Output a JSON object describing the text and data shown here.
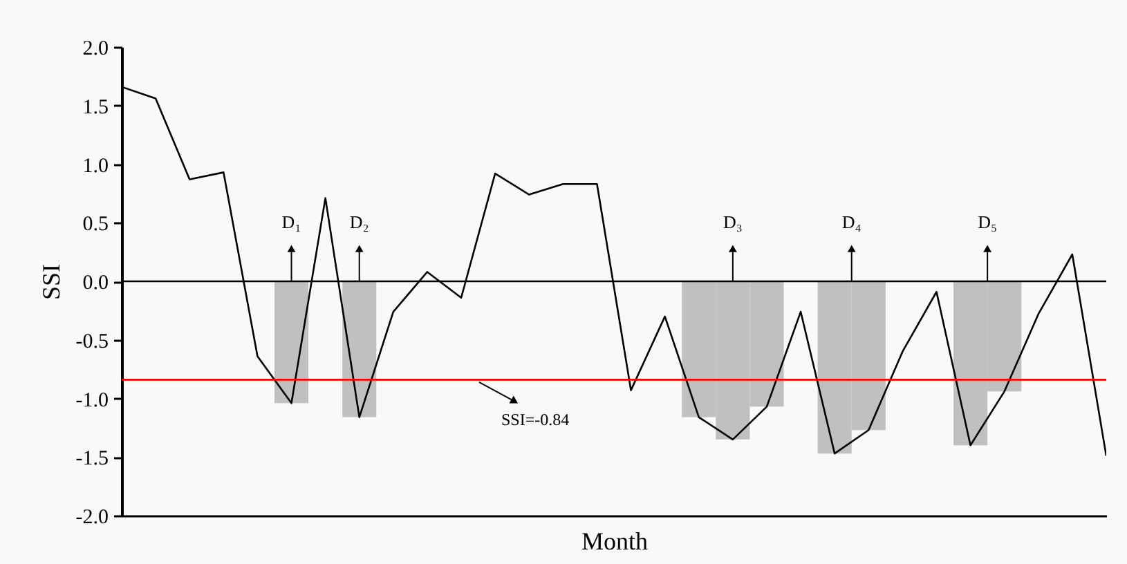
{
  "chart_data": {
    "type": "line",
    "xlabel": "Month",
    "ylabel": "SSI",
    "categories": [
      null,
      null,
      null,
      null,
      null,
      null,
      null,
      null,
      null,
      null,
      null,
      null,
      null,
      null,
      null,
      null,
      null,
      null,
      null,
      null,
      null,
      null,
      null,
      null,
      null,
      null,
      null,
      null,
      null,
      null
    ],
    "series": [
      {
        "color": "#000000",
        "values": [
          1.66,
          1.56,
          0.87,
          0.93,
          -0.64,
          -1.04,
          0.71,
          -1.16,
          -0.26,
          0.08,
          -0.14,
          0.92,
          0.74,
          0.83,
          0.83,
          -0.93,
          -0.3,
          -1.16,
          -1.35,
          -1.07,
          -0.26,
          -1.47,
          -1.27,
          -0.6,
          -0.09,
          -1.4,
          -0.94,
          -0.28,
          0.23,
          -1.49
        ]
      },
      {
        "type": "bar",
        "color": "#c0c0c0",
        "values": [
          null,
          null,
          null,
          null,
          null,
          -1.04,
          null,
          -1.16,
          null,
          null,
          null,
          null,
          null,
          null,
          null,
          null,
          null,
          -1.16,
          -1.35,
          -1.07,
          null,
          -1.47,
          -1.27,
          null,
          null,
          -1.4,
          -0.94,
          null,
          null,
          null
        ]
      }
    ],
    "ylim": [
      -2,
      2
    ],
    "yticks": [
      {
        "value": -2,
        "label": "-2.0"
      },
      {
        "value": -1.5,
        "label": "-1.5"
      },
      {
        "value": -1,
        "label": "-1.0"
      },
      {
        "value": -0.5,
        "label": "-0.5"
      },
      {
        "value": 0,
        "label": "0.0"
      },
      {
        "value": 0.5,
        "label": "0.5"
      },
      {
        "value": 1,
        "label": "1.0"
      },
      {
        "value": 1.5,
        "label": "1.5"
      },
      {
        "value": 2,
        "label": "2.0"
      }
    ],
    "tick_labels": "y",
    "ref_lines": [
      {
        "axis": "y",
        "value": 0,
        "color": "#000000"
      },
      {
        "axis": "y",
        "value": -0.84,
        "label": "SSI=-0.84",
        "color": "#ff0000"
      }
    ],
    "annotations": [
      "D₁",
      "D₂",
      "D₃",
      "D₄",
      "D₅"
    ]
  }
}
